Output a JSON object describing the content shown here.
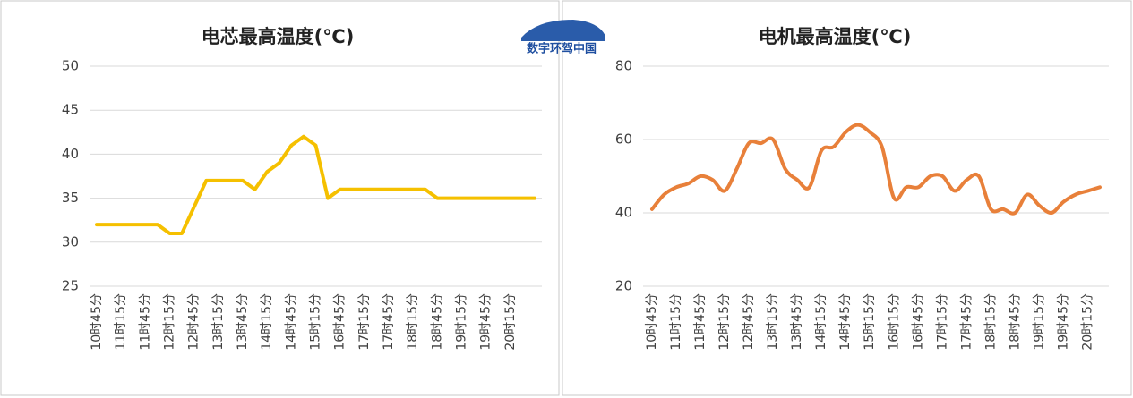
{
  "logo": {
    "text": "数字环驾中国"
  },
  "chart_data": [
    {
      "type": "line",
      "title": "电芯最高温度(℃)",
      "color": "#f5c000",
      "grid": true,
      "categories": [
        "10时45分",
        null,
        "11时15分",
        null,
        "11时45分",
        null,
        "12时15分",
        null,
        "12时45分",
        null,
        "13时15分",
        null,
        "13时45分",
        null,
        "14时15分",
        null,
        "14时45分",
        null,
        "15时15分",
        null,
        "16时45分",
        null,
        "17时15分",
        null,
        "17时45分",
        null,
        "18时15分",
        null,
        "18时45分",
        null,
        "19时15分",
        null,
        "19时45分",
        null,
        "20时15分",
        null,
        null
      ],
      "values": [
        32,
        32,
        32,
        32,
        32,
        32,
        31,
        31,
        34,
        37,
        37,
        37,
        37,
        36,
        38,
        39,
        41,
        42,
        41,
        35,
        36,
        36,
        36,
        36,
        36,
        36,
        36,
        36,
        35,
        35,
        35,
        35,
        35,
        35,
        35,
        35,
        35
      ],
      "ylim": [
        25,
        50
      ],
      "yticks": [
        25,
        30,
        35,
        40,
        45,
        50
      ]
    },
    {
      "type": "line",
      "title": "电机最高温度(℃)",
      "color": "#e8803a",
      "grid": true,
      "smooth": true,
      "categories": [
        "10时45分",
        null,
        "11时15分",
        null,
        "11时45分",
        null,
        "12时15分",
        null,
        "12时45分",
        null,
        "13时15分",
        null,
        "13时45分",
        null,
        "14时15分",
        null,
        "14时45分",
        null,
        "15时15分",
        null,
        "16时15分",
        null,
        "16时45分",
        null,
        "17时15分",
        null,
        "17时45分",
        null,
        "18时15分",
        null,
        "18时45分",
        null,
        "19时15分",
        null,
        "19时45分",
        null,
        "20时15分",
        null
      ],
      "values": [
        41,
        45,
        47,
        48,
        50,
        49,
        46,
        52,
        59,
        59,
        60,
        52,
        49,
        47,
        57,
        58,
        62,
        64,
        62,
        58,
        44,
        47,
        47,
        50,
        50,
        46,
        49,
        50,
        41,
        41,
        40,
        45,
        42,
        40,
        43,
        45,
        46,
        47
      ],
      "ylim": [
        20,
        80
      ],
      "yticks": [
        20,
        40,
        60,
        80
      ]
    }
  ]
}
